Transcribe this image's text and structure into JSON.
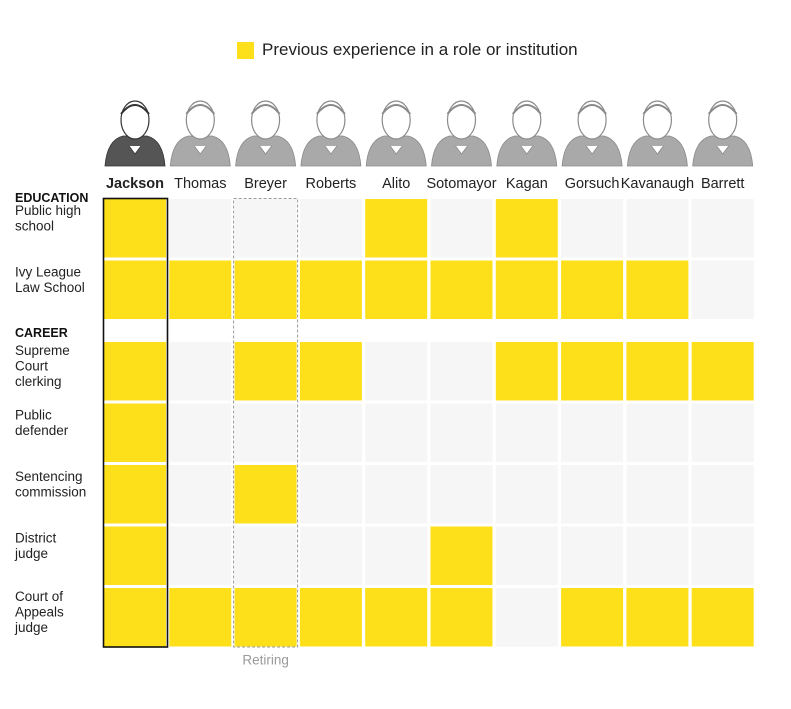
{
  "legend": {
    "label": "Previous experience in a role or institution",
    "color": "#fde01a"
  },
  "colors": {
    "filled": "#fde01a",
    "empty": "#f6f6f6",
    "highlight_border": "#111111",
    "retiring_border": "#9a9a9a"
  },
  "chart_data": {
    "type": "table",
    "highlight_column": "Jackson",
    "retiring_column": "Breyer",
    "retiring_label": "Retiring",
    "columns": [
      "Jackson",
      "Thomas",
      "Breyer",
      "Roberts",
      "Alito",
      "Sotomayor",
      "Kagan",
      "Gorsuch",
      "Kavanaugh",
      "Barrett"
    ],
    "sections": [
      {
        "name": "EDUCATION",
        "rows": [
          {
            "label": [
              "Public high",
              "school"
            ],
            "values": [
              1,
              0,
              0,
              0,
              1,
              0,
              1,
              0,
              0,
              0
            ]
          },
          {
            "label": [
              "Ivy League",
              "Law School"
            ],
            "values": [
              1,
              1,
              1,
              1,
              1,
              1,
              1,
              1,
              1,
              0
            ]
          }
        ]
      },
      {
        "name": "CAREER",
        "rows": [
          {
            "label": [
              "Supreme",
              "Court",
              "clerking"
            ],
            "values": [
              1,
              0,
              1,
              1,
              0,
              0,
              1,
              1,
              1,
              1
            ]
          },
          {
            "label": [
              "Public",
              "defender"
            ],
            "values": [
              1,
              0,
              0,
              0,
              0,
              0,
              0,
              0,
              0,
              0
            ]
          },
          {
            "label": [
              "Sentencing",
              "commission"
            ],
            "values": [
              1,
              0,
              1,
              0,
              0,
              0,
              0,
              0,
              0,
              0
            ]
          },
          {
            "label": [
              "District",
              "judge"
            ],
            "values": [
              1,
              0,
              0,
              0,
              0,
              1,
              0,
              0,
              0,
              0
            ]
          },
          {
            "label": [
              "Court of",
              "Appeals",
              "judge"
            ],
            "values": [
              1,
              1,
              1,
              1,
              1,
              1,
              0,
              1,
              1,
              1
            ]
          }
        ]
      }
    ]
  }
}
